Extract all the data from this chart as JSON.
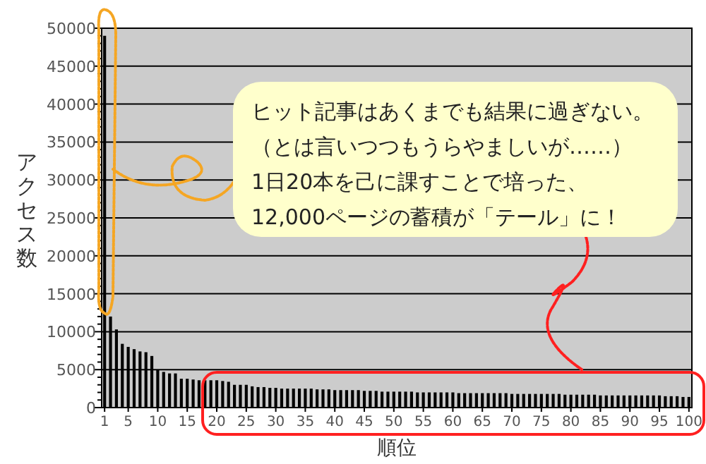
{
  "chart_data": {
    "type": "bar",
    "xlabel": "順位",
    "ylabel": "アクセス数",
    "annotations": [
      "ヒット記事はあくまでも結果に過ぎない。",
      "（とは言いつつもうらやましいが……）",
      "1日20本を己に課すことで培った、",
      "12,000ページの蓄積が「テール」に！"
    ],
    "x": [
      1,
      2,
      3,
      4,
      5,
      6,
      7,
      8,
      9,
      10,
      11,
      12,
      13,
      14,
      15,
      16,
      17,
      18,
      19,
      20,
      21,
      22,
      23,
      24,
      25,
      26,
      27,
      28,
      29,
      30,
      31,
      32,
      33,
      34,
      35,
      36,
      37,
      38,
      39,
      40,
      41,
      42,
      43,
      44,
      45,
      46,
      47,
      48,
      49,
      50,
      51,
      52,
      53,
      54,
      55,
      56,
      57,
      58,
      59,
      60,
      61,
      62,
      63,
      64,
      65,
      66,
      67,
      68,
      69,
      70,
      71,
      72,
      73,
      74,
      75,
      76,
      77,
      78,
      79,
      80,
      81,
      82,
      83,
      84,
      85,
      86,
      87,
      88,
      89,
      90,
      91,
      92,
      93,
      94,
      95,
      96,
      97,
      98,
      99,
      100
    ],
    "values": [
      49000,
      12000,
      10300,
      8400,
      8000,
      7700,
      7400,
      7300,
      6800,
      5000,
      4700,
      4500,
      4500,
      3800,
      3800,
      3700,
      3600,
      3600,
      3600,
      3600,
      3500,
      3400,
      3000,
      3000,
      3000,
      2800,
      2700,
      2700,
      2600,
      2600,
      2500,
      2500,
      2500,
      2500,
      2500,
      2500,
      2400,
      2400,
      2400,
      2300,
      2300,
      2300,
      2300,
      2300,
      2200,
      2200,
      2200,
      2100,
      2100,
      2100,
      2100,
      2100,
      2100,
      2000,
      2000,
      2000,
      2000,
      2000,
      2000,
      2000,
      1900,
      1900,
      1900,
      1900,
      1900,
      1900,
      1900,
      1900,
      1900,
      1800,
      1800,
      1800,
      1800,
      1800,
      1800,
      1800,
      1800,
      1800,
      1700,
      1700,
      1700,
      1700,
      1700,
      1700,
      1600,
      1600,
      1600,
      1600,
      1600,
      1600,
      1600,
      1600,
      1600,
      1600,
      1600,
      1500,
      1500,
      1500,
      1400,
      1400
    ],
    "color": "#000000",
    "xlim": [
      0.5,
      100.5
    ],
    "xticks": [
      1,
      5,
      10,
      15,
      20,
      25,
      30,
      35,
      40,
      45,
      50,
      55,
      60,
      65,
      70,
      75,
      80,
      85,
      90,
      95,
      100
    ],
    "ylim": [
      0,
      50000
    ],
    "yticks": [
      0,
      {
        "value": 1000,
        "label": null
      },
      {
        "value": 2000,
        "label": null
      },
      {
        "value": 3000,
        "label": null
      },
      {
        "value": 4000,
        "label": null
      },
      5000,
      {
        "value": 6000,
        "label": null
      },
      {
        "value": 7000,
        "label": null
      },
      {
        "value": 8000,
        "label": null
      },
      {
        "value": 9000,
        "label": null
      },
      10000,
      {
        "value": 11000,
        "label": null
      },
      {
        "value": 12000,
        "label": null
      },
      {
        "value": 13000,
        "label": null
      },
      {
        "value": 14000,
        "label": null
      },
      15000,
      {
        "value": 16000,
        "label": null
      },
      {
        "value": 17000,
        "label": null
      },
      {
        "value": 18000,
        "label": null
      },
      {
        "value": 19000,
        "label": null
      },
      20000,
      {
        "value": 21000,
        "label": null
      },
      {
        "value": 22000,
        "label": null
      },
      {
        "value": 23000,
        "label": null
      },
      {
        "value": 24000,
        "label": null
      },
      25000,
      {
        "value": 26000,
        "label": null
      },
      {
        "value": 27000,
        "label": null
      },
      {
        "value": 28000,
        "label": null
      },
      {
        "value": 29000,
        "label": null
      },
      30000,
      {
        "value": 31000,
        "label": null
      },
      {
        "value": 32000,
        "label": null
      },
      {
        "value": 33000,
        "label": null
      },
      {
        "value": 34000,
        "label": null
      },
      35000,
      {
        "value": 36000,
        "label": null
      },
      {
        "value": 37000,
        "label": null
      },
      {
        "value": 38000,
        "label": null
      },
      {
        "value": 39000,
        "label": null
      },
      40000,
      {
        "value": 41000,
        "label": null
      },
      {
        "value": 42000,
        "label": null
      },
      {
        "value": 43000,
        "label": null
      },
      {
        "value": 44000,
        "label": null
      },
      45000,
      {
        "value": 46000,
        "label": null
      },
      {
        "value": 47000,
        "label": null
      },
      {
        "value": 48000,
        "label": null
      },
      {
        "value": 49000,
        "label": null
      },
      50000
    ],
    "grid": "y"
  }
}
